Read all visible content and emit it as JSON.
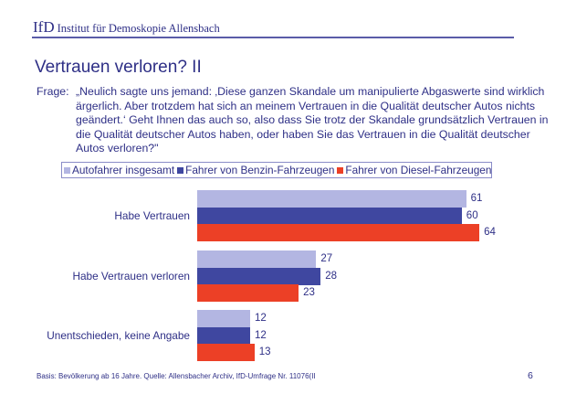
{
  "header": {
    "logo_mark": "IfD",
    "institute": "Institut für Demoskopie Allensbach"
  },
  "title": "Vertrauen verloren? II",
  "question": {
    "label": "Frage:",
    "text": "„Neulich sagte uns jemand: ‚Diese ganzen Skandale um manipulierte Abgaswerte sind wirklich ärgerlich. Aber trotzdem hat sich an meinem Vertrauen in die Qualität deutscher Autos nichts geändert.‘ Geht Ihnen das auch so, also dass Sie trotz der Skandale grundsätzlich Vertrauen in die Qualität deutscher Autos haben, oder haben Sie das Vertrauen in die Qualität deutscher Autos verloren?\""
  },
  "chart_data": {
    "type": "bar",
    "orientation": "horizontal",
    "title": "",
    "xlabel": "",
    "ylabel": "",
    "xlim": [
      0,
      100
    ],
    "grid": false,
    "legend_position": "top",
    "categories": [
      "Habe Vertrauen",
      "Habe Vertrauen verloren",
      "Unentschieden, keine Angabe"
    ],
    "series": [
      {
        "name": "Autofahrer insgesamt",
        "color": "#b3b6e2",
        "values": [
          61,
          27,
          12
        ]
      },
      {
        "name": "Fahrer von Benzin-Fahrzeugen",
        "color": "#3f47a0",
        "values": [
          60,
          28,
          12
        ]
      },
      {
        "name": "Fahrer von Diesel-Fahrzeugen",
        "color": "#ec4026",
        "values": [
          64,
          23,
          13
        ]
      }
    ]
  },
  "footer": {
    "source": "Basis: Bevölkerung ab 16 Jahre. Quelle: Allensbacher Archiv, IfD-Umfrage Nr. 11076(II",
    "page_number": "6"
  }
}
